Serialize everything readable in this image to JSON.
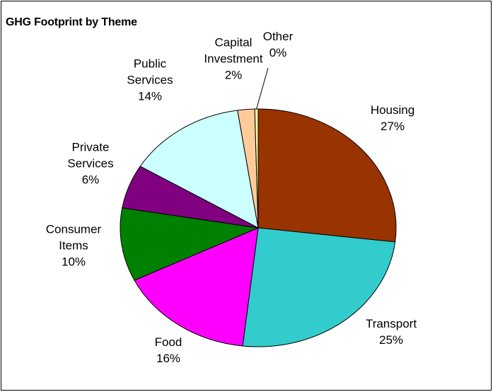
{
  "chart_data": {
    "type": "pie",
    "title": "GHG Footprint by Theme",
    "slices": [
      {
        "name": "Housing",
        "value": 27,
        "label": "27%",
        "color": "#993300"
      },
      {
        "name": "Transport",
        "value": 25,
        "label": "25%",
        "color": "#33CCCC"
      },
      {
        "name": "Food",
        "value": 16,
        "label": "16%",
        "color": "#FF00FF"
      },
      {
        "name": "Consumer Items",
        "value": 10,
        "label": "10%",
        "color": "#008000"
      },
      {
        "name": "Private Services",
        "value": 6,
        "label": "6%",
        "color": "#800080"
      },
      {
        "name": "Public Services",
        "value": 14,
        "label": "14%",
        "color": "#CCFFFF"
      },
      {
        "name": "Capital Investment",
        "value": 2,
        "label": "2%",
        "color": "#FFCC99"
      },
      {
        "name": "Other",
        "value": 0.4,
        "label": "0%",
        "color": "#FFFF99"
      }
    ],
    "start_angle": "12 o'clock",
    "direction": "clockwise",
    "legend": "none"
  }
}
